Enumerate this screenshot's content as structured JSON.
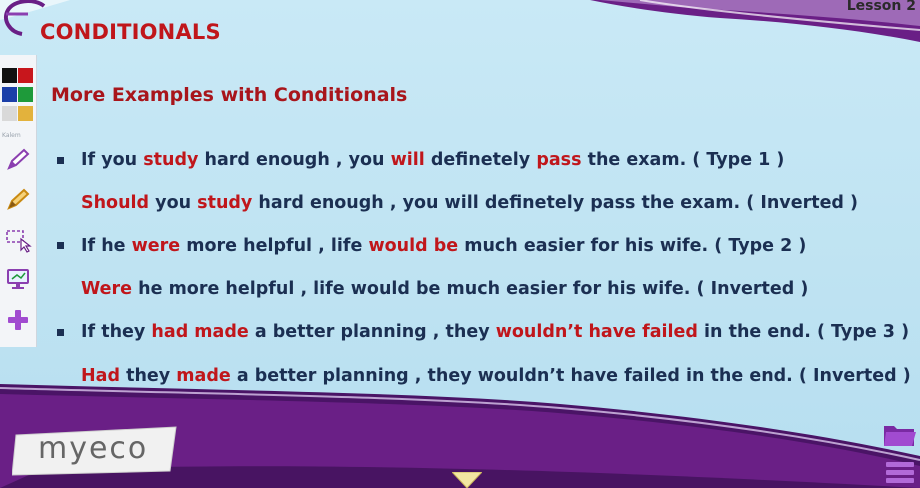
{
  "header": {
    "lesson_label": "Lesson 2"
  },
  "slide": {
    "title": "CONDITIONALS",
    "subtitle": "More Examples with Conditionals",
    "lines": [
      {
        "segments": [
          {
            "text": "If you ",
            "hl": false
          },
          {
            "text": "study",
            "hl": true
          },
          {
            "text": " hard enough , you ",
            "hl": false
          },
          {
            "text": "will",
            "hl": true
          },
          {
            "text": " definetely ",
            "hl": false
          },
          {
            "text": "pass",
            "hl": true
          },
          {
            "text": " the exam. ( Type 1 )",
            "hl": false
          }
        ]
      },
      {
        "segments": [
          {
            "text": "Should",
            "hl": true
          },
          {
            "text": " you ",
            "hl": false
          },
          {
            "text": "study",
            "hl": true
          },
          {
            "text": " hard enough , you will definetely pass the exam. ( Inverted )",
            "hl": false
          }
        ]
      },
      {
        "segments": [
          {
            "text": "If he ",
            "hl": false
          },
          {
            "text": "were",
            "hl": true
          },
          {
            "text": " more helpful , life ",
            "hl": false
          },
          {
            "text": "would be",
            "hl": true
          },
          {
            "text": " much easier for his wife. ( Type 2 )",
            "hl": false
          }
        ]
      },
      {
        "segments": [
          {
            "text": "Were",
            "hl": true
          },
          {
            "text": " he more helpful , life would be much easier for his wife. ( Inverted )",
            "hl": false
          }
        ]
      },
      {
        "segments": [
          {
            "text": "If they ",
            "hl": false
          },
          {
            "text": "had made",
            "hl": true
          },
          {
            "text": " a better planning , they ",
            "hl": false
          },
          {
            "text": "wouldn’t have failed",
            "hl": true
          },
          {
            "text": " in the end. ( Type 3 )",
            "hl": false
          }
        ]
      },
      {
        "segments": [
          {
            "text": "Had",
            "hl": true
          },
          {
            "text": " they ",
            "hl": false
          },
          {
            "text": "made",
            "hl": true
          },
          {
            "text": " a better planning , they wouldn’t have failed in the end. ( Inverted )",
            "hl": false
          }
        ]
      }
    ]
  },
  "toolbar": {
    "label": "Kalem",
    "colors": [
      "#111111",
      "#c8161c",
      "#1b3fa8",
      "#1e9a3a",
      "#d9d9d9",
      "#e3b23c"
    ],
    "tools": [
      "pencil-icon",
      "pen-icon",
      "selection-icon",
      "screen-icon",
      "add-icon"
    ]
  },
  "brand": {
    "logo_text": "myeco"
  },
  "colors": {
    "accent_red": "#c0161b",
    "text_navy": "#1b2f52",
    "purple": "#5b1a7a"
  }
}
